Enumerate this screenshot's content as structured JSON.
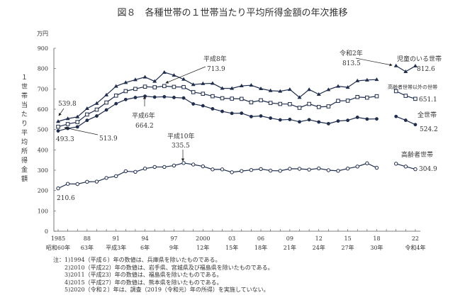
{
  "chart_data": {
    "type": "line",
    "title": "図８　各種世帯の１世帯当たり平均所得金額の年次推移",
    "ylabel": "１世帯当たり平均所得金額",
    "yunit": "万円",
    "ylim": [
      0,
      900
    ],
    "yticks": [
      0,
      100,
      200,
      300,
      400,
      500,
      600,
      700,
      800,
      900
    ],
    "xlim": [
      1985,
      2022
    ],
    "xtick_labels": [
      {
        "year": 1985,
        "top": "1985",
        "bottom": "昭和60年"
      },
      {
        "year": 1988,
        "top": "88",
        "bottom": "63年"
      },
      {
        "year": 1991,
        "top": "91",
        "bottom": "平成3年"
      },
      {
        "year": 1994,
        "top": "94",
        "bottom": "6年"
      },
      {
        "year": 1997,
        "top": "97",
        "bottom": "9年"
      },
      {
        "year": 2000,
        "top": "2000",
        "bottom": "12年"
      },
      {
        "year": 2003,
        "top": "03",
        "bottom": "15年"
      },
      {
        "year": 2006,
        "top": "06",
        "bottom": "18年"
      },
      {
        "year": 2009,
        "top": "09",
        "bottom": "21年"
      },
      {
        "year": 2012,
        "top": "12",
        "bottom": "24年"
      },
      {
        "year": 2015,
        "top": "15",
        "bottom": "27年"
      },
      {
        "year": 2018,
        "top": "18",
        "bottom": "30年"
      },
      {
        "year": 2022,
        "top": "22",
        "bottom": "令和4年"
      }
    ],
    "grid": false,
    "legend": "right (inline labels)",
    "color": "#1f2d4e",
    "x": [
      1985,
      1986,
      1987,
      1988,
      1989,
      1990,
      1991,
      1992,
      1993,
      1994,
      1995,
      1996,
      1997,
      1998,
      1999,
      2000,
      2001,
      2002,
      2003,
      2004,
      2005,
      2006,
      2007,
      2008,
      2009,
      2010,
      2011,
      2012,
      2013,
      2014,
      2015,
      2016,
      2017,
      2018,
      2020,
      2021,
      2022
    ],
    "series": [
      {
        "name": "児童のいる世帯",
        "marker": "filled-triangle",
        "end_label": "812.6",
        "values": [
          539.8,
          553.8,
          562.4,
          603.4,
          628.9,
          670.4,
          713.1,
          731.2,
          745.1,
          758.1,
          737.2,
          781.6,
          767.1,
          747.4,
          721.4,
          725.8,
          727.2,
          702.7,
          702.6,
          714.9,
          718.0,
          701.2,
          691.4,
          688.5,
          697.3,
          658.1,
          697.0,
          673.2,
          696.3,
          712.9,
          707.6,
          739.8,
          743.6,
          745.9,
          813.5,
          785.0,
          812.6
        ]
      },
      {
        "name": "高齢者世帯以外の世帯",
        "marker": "open-square",
        "end_label": "651.1",
        "values": [
          513.9,
          527,
          537,
          574,
          598,
          633,
          667,
          689,
          700,
          711,
          708,
          713.9,
          710,
          709,
          684,
          676,
          664,
          654,
          652,
          651,
          634,
          644,
          631,
          626,
          625,
          607,
          626,
          611,
          614,
          641,
          642,
          660,
          657,
          664,
          689,
          666,
          651.1
        ]
      },
      {
        "name": "全世帯",
        "marker": "filled-circle",
        "end_label": "524.2",
        "values": [
          493.3,
          505.6,
          513.2,
          545.3,
          566.7,
          596.6,
          627.4,
          647.6,
          657.5,
          664.2,
          659.6,
          661.2,
          657.7,
          655.2,
          626.0,
          616.9,
          602.0,
          589.3,
          579.7,
          580.4,
          563.8,
          566.8,
          556.2,
          547.5,
          549.6,
          538.0,
          548.2,
          537.2,
          528.9,
          541.9,
          545.4,
          560.2,
          551.6,
          552.3,
          564.3,
          545.7,
          524.2
        ]
      },
      {
        "name": "高齢者世帯",
        "marker": "open-circle",
        "end_label": "304.9",
        "values": [
          210.6,
          233,
          232,
          243,
          244,
          262,
          271,
          295,
          292,
          308,
          316,
          316,
          323,
          335.5,
          328,
          319,
          304,
          304,
          290,
          296,
          301,
          306,
          298,
          297,
          307,
          307,
          303,
          309,
          300,
          297,
          308,
          318,
          334,
          312,
          332,
          318,
          304.9
        ]
      }
    ],
    "annotations": [
      {
        "text": "539.8"
      },
      {
        "text": "493.3"
      },
      {
        "text": "513.9"
      },
      {
        "label": "平成6年",
        "text": "664.2"
      },
      {
        "label": "平成8年",
        "text": "713.9"
      },
      {
        "label": "平成10年",
        "text": "335.5"
      },
      {
        "label": "令和2年",
        "text": "813.5"
      },
      {
        "text": "210.6"
      }
    ]
  },
  "notes": {
    "prefix": "注：",
    "items": [
      "1)1994（平成６）年の数値は、兵庫県を除いたものである。",
      "2)2010（平成22）年の数値は、岩手県、宮城県及び福島県を除いたものである。",
      "3)2011（平成23）年の数値は、福島県を除いたものである。",
      "4)2015（平成27）年の数値は、熊本県を除いたものである。",
      "5)2020（令和２）年は、調査（2019（令和元）年の所得）を実施していない。"
    ]
  }
}
